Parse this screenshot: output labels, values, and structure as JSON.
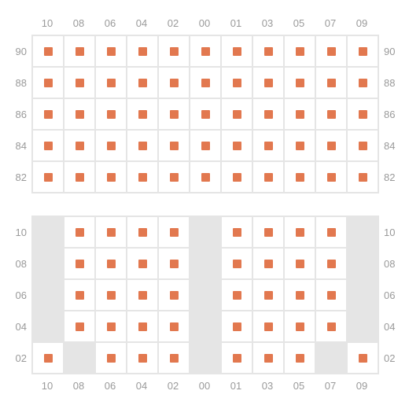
{
  "colors": {
    "marker": "#e2784f",
    "cell_bg": "#ffffff",
    "empty_bg": "#e5e5e5",
    "border": "#e5e5e5",
    "label": "#9a9a9a"
  },
  "layout": {
    "cell_size": 40,
    "marker_size": 11,
    "label_fontsize": 13
  },
  "top": {
    "col_labels": [
      "10",
      "08",
      "06",
      "04",
      "02",
      "00",
      "01",
      "03",
      "05",
      "07",
      "09"
    ],
    "row_labels": [
      "90",
      "88",
      "86",
      "84",
      "82"
    ],
    "cells": [
      [
        1,
        1,
        1,
        1,
        1,
        1,
        1,
        1,
        1,
        1,
        1
      ],
      [
        1,
        1,
        1,
        1,
        1,
        1,
        1,
        1,
        1,
        1,
        1
      ],
      [
        1,
        1,
        1,
        1,
        1,
        1,
        1,
        1,
        1,
        1,
        1
      ],
      [
        1,
        1,
        1,
        1,
        1,
        1,
        1,
        1,
        1,
        1,
        1
      ],
      [
        1,
        1,
        1,
        1,
        1,
        1,
        1,
        1,
        1,
        1,
        1
      ]
    ]
  },
  "bottom": {
    "col_labels": [
      "10",
      "08",
      "06",
      "04",
      "02",
      "00",
      "01",
      "03",
      "05",
      "07",
      "09"
    ],
    "row_labels": [
      "10",
      "08",
      "06",
      "04",
      "02"
    ],
    "cells": [
      [
        0,
        1,
        1,
        1,
        1,
        0,
        1,
        1,
        1,
        1,
        0
      ],
      [
        0,
        1,
        1,
        1,
        1,
        0,
        1,
        1,
        1,
        1,
        0
      ],
      [
        0,
        1,
        1,
        1,
        1,
        0,
        1,
        1,
        1,
        1,
        0
      ],
      [
        0,
        1,
        1,
        1,
        1,
        0,
        1,
        1,
        1,
        1,
        0
      ],
      [
        1,
        0,
        1,
        1,
        1,
        0,
        1,
        1,
        1,
        0,
        1
      ]
    ]
  }
}
